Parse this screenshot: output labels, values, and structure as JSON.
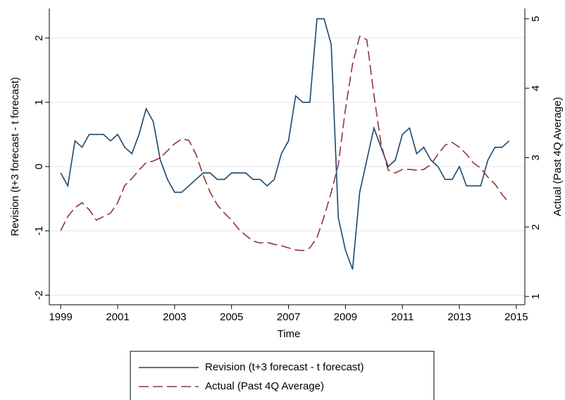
{
  "chart_data": {
    "type": "line",
    "xlabel": "Time",
    "ylabel": "Revision (t+3 forecast - t forecast)",
    "y2label": "Actual (Past 4Q Average)",
    "x": [
      1999,
      1999.25,
      1999.5,
      1999.75,
      2000,
      2000.25,
      2000.5,
      2000.75,
      2001,
      2001.25,
      2001.5,
      2001.75,
      2002,
      2002.25,
      2002.5,
      2002.75,
      2003,
      2003.25,
      2003.5,
      2003.75,
      2004,
      2004.25,
      2004.5,
      2004.75,
      2005,
      2005.25,
      2005.5,
      2005.75,
      2006,
      2006.25,
      2006.5,
      2006.75,
      2007,
      2007.25,
      2007.5,
      2007.75,
      2008,
      2008.25,
      2008.5,
      2008.75,
      2009,
      2009.25,
      2009.5,
      2009.75,
      2010,
      2010.25,
      2010.5,
      2010.75,
      2011,
      2011.25,
      2011.5,
      2011.75,
      2012,
      2012.25,
      2012.5,
      2012.75,
      2013,
      2013.25,
      2013.5,
      2013.75,
      2014,
      2014.25,
      2014.5,
      2014.75
    ],
    "series": [
      {
        "name": "Revision (t+3 forecast - t forecast)",
        "color": "#1a476f",
        "dash": "solid",
        "values": [
          -0.1,
          -0.3,
          0.4,
          0.3,
          0.5,
          0.5,
          0.5,
          0.4,
          0.5,
          0.3,
          0.2,
          0.5,
          0.9,
          0.7,
          0.1,
          -0.2,
          -0.4,
          -0.4,
          -0.3,
          -0.2,
          -0.1,
          -0.1,
          -0.2,
          -0.2,
          -0.1,
          -0.1,
          -0.1,
          -0.2,
          -0.2,
          -0.3,
          -0.2,
          0.2,
          0.4,
          1.1,
          1.0,
          1.0,
          2.3,
          2.3,
          1.9,
          -0.8,
          -1.3,
          -1.6,
          -0.4,
          0.1,
          0.6,
          0.3,
          0.0,
          0.1,
          0.5,
          0.6,
          0.2,
          0.3,
          0.1,
          0.0,
          -0.2,
          -0.2,
          0.0,
          -0.3,
          -0.3,
          -0.3,
          0.1,
          0.3,
          0.3,
          0.4
        ]
      },
      {
        "name": "Actual (Past 4Q Average)",
        "color": "#90353b",
        "dash": "dashed",
        "axis": "y2",
        "values": [
          1.95,
          2.15,
          2.28,
          2.35,
          2.25,
          2.1,
          2.15,
          2.2,
          2.35,
          2.6,
          2.7,
          2.82,
          2.93,
          2.95,
          3.0,
          3.1,
          3.2,
          3.27,
          3.25,
          3.05,
          2.75,
          2.5,
          2.32,
          2.2,
          2.1,
          1.97,
          1.88,
          1.8,
          1.77,
          1.78,
          1.75,
          1.73,
          1.7,
          1.67,
          1.66,
          1.7,
          1.85,
          2.15,
          2.5,
          2.9,
          3.7,
          4.35,
          4.75,
          4.7,
          3.9,
          3.2,
          2.82,
          2.78,
          2.83,
          2.83,
          2.82,
          2.83,
          2.9,
          3.05,
          3.18,
          3.22,
          3.15,
          3.05,
          2.92,
          2.85,
          2.72,
          2.62,
          2.47,
          2.35
        ]
      }
    ],
    "xlim": [
      1998.6,
      2015.3
    ],
    "xticks": [
      1999,
      2001,
      2003,
      2005,
      2007,
      2009,
      2011,
      2013,
      2015
    ],
    "ylim": [
      -2.15,
      2.46
    ],
    "yticks": [
      -2,
      -1,
      0,
      1,
      2
    ],
    "y2lim": [
      0.88,
      5.15
    ],
    "y2ticks": [
      1,
      2,
      3,
      4,
      5
    ],
    "grid": true,
    "legend": "bottom"
  }
}
